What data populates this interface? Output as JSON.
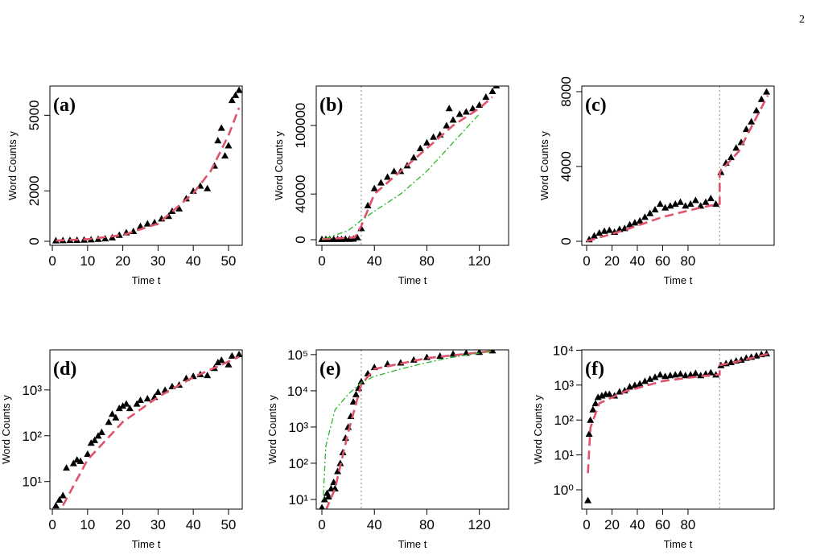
{
  "page_number": "2",
  "chart_data": [
    {
      "type": "scatter",
      "title": "(a)",
      "xlabel": "Time t",
      "ylabel": "Word Counts y",
      "log_y": false,
      "xlim": [
        -0.7,
        53.9
      ],
      "ylim": [
        -160,
        6160
      ],
      "xticks": [
        0,
        10,
        20,
        30,
        40,
        50
      ],
      "yticks": [
        0,
        2000,
        5000
      ],
      "series": [
        {
          "kind": "points",
          "color": "#000000",
          "x": [
            1,
            3,
            5,
            7,
            9,
            11,
            13,
            15,
            17,
            19,
            21,
            23,
            25,
            27,
            29,
            31,
            33,
            34,
            36,
            38,
            40,
            42,
            44,
            46,
            47,
            48,
            49,
            50,
            51,
            52,
            53
          ],
          "values": [
            30,
            40,
            45,
            50,
            60,
            70,
            90,
            110,
            150,
            250,
            350,
            400,
            600,
            700,
            750,
            900,
            1000,
            1200,
            1300,
            1700,
            2000,
            2200,
            2100,
            3000,
            4000,
            4500,
            3400,
            3800,
            5600,
            5800,
            6000
          ]
        },
        {
          "kind": "line",
          "style": "dashed",
          "color": "#df536b",
          "x": [
            1,
            10,
            20,
            30,
            40,
            45,
            50,
            53
          ],
          "values": [
            30,
            80,
            250,
            700,
            1900,
            2800,
            4200,
            5300
          ]
        }
      ]
    },
    {
      "type": "scatter",
      "title": "(b)",
      "xlabel": "Time t",
      "ylabel": "Word Counts y",
      "log_y": false,
      "vline": 30,
      "xlim": [
        -4.3,
        142.3
      ],
      "ylim": [
        -4900,
        134500
      ],
      "xticks": [
        0,
        40,
        80,
        120
      ],
      "yticks": [
        0,
        40000,
        100000
      ],
      "series": [
        {
          "kind": "points",
          "color": "#000000",
          "x": [
            0,
            3,
            6,
            9,
            12,
            15,
            18,
            21,
            24,
            27,
            30,
            35,
            40,
            45,
            50,
            55,
            60,
            65,
            70,
            75,
            80,
            85,
            90,
            95,
            97,
            100,
            105,
            110,
            115,
            120,
            125,
            130,
            133
          ],
          "values": [
            500,
            500,
            600,
            500,
            600,
            500,
            700,
            600,
            800,
            2000,
            10000,
            30000,
            45000,
            50000,
            55000,
            60000,
            60000,
            65000,
            72000,
            80000,
            85000,
            90000,
            92000,
            100000,
            115000,
            105000,
            110000,
            112000,
            115000,
            118000,
            125000,
            130000,
            135000
          ]
        },
        {
          "kind": "line",
          "style": "dashed",
          "color": "#df536b",
          "x": [
            0,
            25,
            30,
            40,
            60,
            80,
            100,
            120,
            130
          ],
          "values": [
            500,
            2000,
            12000,
            40000,
            60000,
            80000,
            100000,
            115000,
            125000
          ]
        },
        {
          "kind": "line",
          "style": "dotdash",
          "color": "#28b828",
          "x": [
            0,
            20,
            30,
            40,
            60,
            80,
            100,
            120
          ],
          "values": [
            0,
            8000,
            17000,
            25000,
            40000,
            60000,
            85000,
            110000
          ]
        }
      ]
    },
    {
      "type": "scatter",
      "title": "(c)",
      "xlabel": "Time t",
      "ylabel": "Word Counts y",
      "log_y": false,
      "vline": 105,
      "xlim": [
        -3.8,
        148
      ],
      "ylim": [
        -215,
        8300
      ],
      "xticks": [
        0,
        20,
        40,
        60,
        80
      ],
      "yticks": [
        0,
        4000,
        8000
      ],
      "series": [
        {
          "kind": "points",
          "color": "#000000",
          "x": [
            2,
            6,
            10,
            14,
            18,
            22,
            26,
            30,
            34,
            38,
            42,
            46,
            50,
            54,
            58,
            62,
            66,
            70,
            74,
            78,
            82,
            86,
            90,
            94,
            98,
            102,
            106,
            110,
            114,
            118,
            122,
            126,
            130,
            134,
            138,
            142
          ],
          "values": [
            100,
            300,
            450,
            550,
            600,
            500,
            650,
            700,
            900,
            1000,
            1100,
            1300,
            1500,
            1700,
            2000,
            1800,
            1900,
            2000,
            2100,
            1900,
            2000,
            2200,
            1900,
            2100,
            2300,
            2000,
            3700,
            4200,
            4500,
            5000,
            5300,
            6000,
            6400,
            7000,
            7600,
            8000
          ]
        },
        {
          "kind": "line",
          "style": "dashed",
          "color": "#df536b",
          "x": [
            0,
            30,
            60,
            90,
            105,
            105,
            120,
            143
          ],
          "values": [
            0,
            600,
            1300,
            1800,
            2000,
            3700,
            4800,
            7800
          ]
        }
      ]
    },
    {
      "type": "scatter",
      "title": "(d)",
      "xlabel": "Time t",
      "ylabel": "Word Counts y",
      "log_y": true,
      "xlim": [
        -0.7,
        53.9
      ],
      "ylim": [
        2.5,
        7500
      ],
      "xticks": [
        0,
        10,
        20,
        30,
        40,
        50
      ],
      "yticks": [
        {
          "value": 10,
          "label": "10¹"
        },
        {
          "value": 100,
          "label": "10²"
        },
        {
          "value": 1000,
          "label": "10³"
        }
      ],
      "series": [
        {
          "kind": "points",
          "color": "#000000",
          "x": [
            1,
            2,
            3,
            4,
            6,
            7,
            8,
            10,
            11,
            12,
            13,
            14,
            16,
            17,
            18,
            19,
            20,
            21,
            22,
            24,
            25,
            27,
            29,
            30,
            32,
            34,
            36,
            38,
            40,
            42,
            44,
            46,
            47,
            48,
            50,
            51,
            53
          ],
          "values": [
            3,
            4,
            5,
            20,
            25,
            30,
            28,
            40,
            70,
            80,
            100,
            120,
            200,
            300,
            250,
            400,
            450,
            500,
            400,
            500,
            600,
            650,
            700,
            900,
            1000,
            1200,
            1300,
            1800,
            2000,
            2200,
            2100,
            3000,
            4000,
            4500,
            3600,
            5600,
            6000
          ]
        },
        {
          "kind": "line",
          "style": "dashed",
          "color": "#df536b",
          "x": [
            3,
            10,
            20,
            30,
            40,
            45,
            53
          ],
          "values": [
            3,
            30,
            200,
            700,
            1900,
            2800,
            5300
          ]
        }
      ]
    },
    {
      "type": "scatter",
      "title": "(e)",
      "xlabel": "Time t",
      "ylabel": "Word Counts y",
      "log_y": true,
      "vline": 30,
      "xlim": [
        -4.3,
        142.3
      ],
      "ylim": [
        5.4,
        135000
      ],
      "xticks": [
        0,
        40,
        80,
        120
      ],
      "yticks": [
        {
          "value": 10,
          "label": "10¹"
        },
        {
          "value": 100,
          "label": "10²"
        },
        {
          "value": 1000,
          "label": "10³"
        },
        {
          "value": 10000,
          "label": "10⁴"
        },
        {
          "value": 100000,
          "label": "10⁵"
        }
      ],
      "series": [
        {
          "kind": "points",
          "color": "#000000",
          "x": [
            0,
            2,
            4,
            5,
            7,
            9,
            10,
            12,
            14,
            16,
            18,
            20,
            22,
            24,
            26,
            28,
            30,
            35,
            40,
            50,
            60,
            70,
            80,
            90,
            100,
            110,
            120,
            130
          ],
          "values": [
            6,
            10,
            15,
            12,
            20,
            30,
            20,
            60,
            100,
            200,
            500,
            1000,
            2000,
            5000,
            8000,
            12000,
            18000,
            30000,
            45000,
            55000,
            60000,
            72000,
            85000,
            92000,
            105000,
            112000,
            118000,
            130000
          ]
        },
        {
          "kind": "line",
          "style": "dashed",
          "color": "#df536b",
          "x": [
            3,
            10,
            20,
            30,
            40,
            80,
            130
          ],
          "values": [
            5,
            20,
            700,
            15000,
            40000,
            80000,
            125000
          ]
        },
        {
          "kind": "line",
          "style": "dotdash",
          "color": "#28b828",
          "x": [
            1,
            3,
            10,
            20,
            30,
            40,
            60,
            80,
            100,
            130
          ],
          "values": [
            10,
            300,
            3000,
            8000,
            17000,
            25000,
            40000,
            60000,
            85000,
            125000
          ]
        }
      ]
    },
    {
      "type": "scatter",
      "title": "(f)",
      "xlabel": "Time t",
      "ylabel": "Word Counts y",
      "log_y": true,
      "vline": 105,
      "xlim": [
        -3.8,
        148
      ],
      "ylim": [
        0.28,
        10200
      ],
      "xticks": [
        0,
        20,
        40,
        60,
        80
      ],
      "yticks": [
        {
          "value": 1,
          "label": "10⁰"
        },
        {
          "value": 10,
          "label": "10¹"
        },
        {
          "value": 100,
          "label": "10²"
        },
        {
          "value": 1000,
          "label": "10³"
        },
        {
          "value": 10000,
          "label": "10⁴"
        }
      ],
      "series": [
        {
          "kind": "points",
          "color": "#000000",
          "x": [
            1,
            2,
            3,
            5,
            7,
            9,
            12,
            15,
            18,
            22,
            26,
            30,
            34,
            38,
            42,
            46,
            50,
            54,
            58,
            62,
            66,
            70,
            74,
            78,
            82,
            86,
            90,
            94,
            98,
            102,
            106,
            110,
            114,
            118,
            122,
            126,
            130,
            134,
            138,
            142
          ],
          "values": [
            0.5,
            40,
            100,
            200,
            300,
            450,
            500,
            550,
            550,
            500,
            650,
            700,
            900,
            1000,
            1100,
            1300,
            1500,
            1700,
            2000,
            1800,
            1900,
            2000,
            2100,
            1900,
            2000,
            2200,
            1900,
            2100,
            2300,
            2000,
            3700,
            4200,
            4500,
            5000,
            5300,
            6000,
            6400,
            7000,
            7600,
            8000
          ]
        },
        {
          "kind": "line",
          "style": "dashed",
          "color": "#df536b",
          "x": [
            1,
            3,
            10,
            30,
            60,
            90,
            105,
            105,
            120,
            143
          ],
          "values": [
            3,
            60,
            300,
            650,
            1300,
            1800,
            2000,
            3700,
            4800,
            7800
          ]
        }
      ]
    }
  ]
}
